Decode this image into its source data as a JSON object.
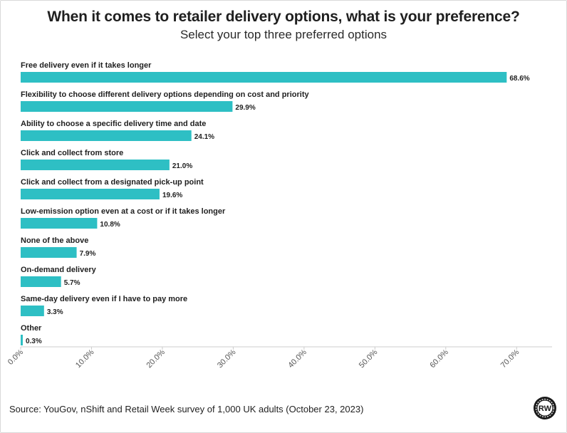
{
  "chart_data": {
    "type": "bar",
    "orientation": "horizontal",
    "title": "When it comes to retailer delivery options, what is your preference?",
    "subtitle": "Select your top three preferred options",
    "categories": [
      "Free delivery even if it takes longer",
      "Flexibility to choose different delivery options depending on cost and priority",
      "Ability to choose a specific delivery time and date",
      "Click and collect from store",
      "Click and collect from a designated pick-up point",
      "Low-emission option even at a cost or if it takes longer",
      "None of the above",
      "On-demand delivery",
      "Same-day delivery even if I have to pay more",
      "Other"
    ],
    "values": [
      68.6,
      29.9,
      24.1,
      21.0,
      19.6,
      10.8,
      7.9,
      5.7,
      3.3,
      0.3
    ],
    "value_labels": [
      "68.6%",
      "29.9%",
      "24.1%",
      "21.0%",
      "19.6%",
      "10.8%",
      "7.9%",
      "5.7%",
      "3.3%",
      "0.3%"
    ],
    "xlim": [
      0,
      75
    ],
    "x_ticks": [
      0,
      10,
      20,
      30,
      40,
      50,
      60,
      70
    ],
    "x_tick_labels": [
      "0.0%",
      "10.0%",
      "20.0%",
      "30.0%",
      "40.0%",
      "50.0%",
      "60.0%",
      "70.0%"
    ],
    "bar_color": "#2ebfc4",
    "grid": false,
    "legend": "none"
  },
  "footer": {
    "source": "Source: YouGov, nShift and Retail Week survey of 1,000 UK adults (October 23, 2023)",
    "logo_text": "RW"
  }
}
